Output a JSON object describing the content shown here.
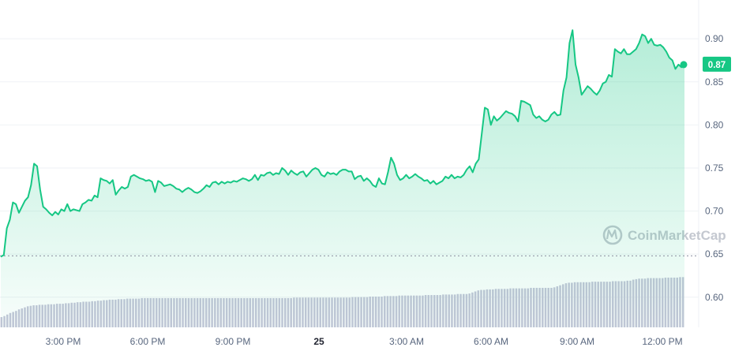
{
  "chart_data": {
    "type": "area",
    "ylim": [
      0.565,
      0.945
    ],
    "y_ticks": [
      0.6,
      0.65,
      0.7,
      0.75,
      0.8,
      0.85,
      0.9
    ],
    "y_tick_labels": [
      "0.60",
      "0.65",
      "0.70",
      "0.75",
      "0.80",
      "0.85",
      "0.90"
    ],
    "x_range": [
      "12:45 PM",
      "1:05 PM"
    ],
    "x_ticks": [
      {
        "label": "3:00 PM",
        "bold": false
      },
      {
        "label": "6:00 PM",
        "bold": false
      },
      {
        "label": "9:00 PM",
        "bold": false
      },
      {
        "label": "25",
        "bold": true
      },
      {
        "label": "3:00 AM",
        "bold": false
      },
      {
        "label": "6:00 AM",
        "bold": false
      },
      {
        "label": "9:00 AM",
        "bold": false
      },
      {
        "label": "12:00 PM",
        "bold": false
      }
    ],
    "baseline": 0.648,
    "last_value": 0.87,
    "last_value_label": "0.87",
    "series": [
      {
        "values": [
          0.647,
          0.649,
          0.68,
          0.69,
          0.71,
          0.708,
          0.698,
          0.705,
          0.712,
          0.716,
          0.73,
          0.755,
          0.752,
          0.725,
          0.705,
          0.702,
          0.698,
          0.695,
          0.699,
          0.696,
          0.702,
          0.7,
          0.708,
          0.7,
          0.702,
          0.701,
          0.7,
          0.708,
          0.71,
          0.713,
          0.712,
          0.718,
          0.716,
          0.738,
          0.736,
          0.735,
          0.732,
          0.736,
          0.719,
          0.724,
          0.728,
          0.726,
          0.728,
          0.74,
          0.742,
          0.74,
          0.738,
          0.737,
          0.735,
          0.736,
          0.734,
          0.722,
          0.735,
          0.733,
          0.729,
          0.73,
          0.731,
          0.729,
          0.726,
          0.725,
          0.722,
          0.725,
          0.727,
          0.725,
          0.722,
          0.721,
          0.723,
          0.726,
          0.73,
          0.728,
          0.733,
          0.734,
          0.731,
          0.734,
          0.732,
          0.734,
          0.733,
          0.735,
          0.734,
          0.736,
          0.738,
          0.737,
          0.735,
          0.737,
          0.742,
          0.736,
          0.742,
          0.741,
          0.744,
          0.745,
          0.742,
          0.744,
          0.743,
          0.75,
          0.747,
          0.742,
          0.747,
          0.744,
          0.742,
          0.745,
          0.746,
          0.74,
          0.744,
          0.748,
          0.75,
          0.748,
          0.742,
          0.74,
          0.745,
          0.743,
          0.744,
          0.742,
          0.746,
          0.748,
          0.748,
          0.746,
          0.746,
          0.737,
          0.74,
          0.741,
          0.735,
          0.738,
          0.735,
          0.73,
          0.728,
          0.738,
          0.732,
          0.731,
          0.745,
          0.762,
          0.755,
          0.742,
          0.736,
          0.738,
          0.742,
          0.738,
          0.74,
          0.743,
          0.74,
          0.738,
          0.735,
          0.736,
          0.732,
          0.735,
          0.731,
          0.733,
          0.735,
          0.74,
          0.738,
          0.742,
          0.738,
          0.74,
          0.739,
          0.742,
          0.748,
          0.752,
          0.745,
          0.755,
          0.76,
          0.79,
          0.82,
          0.818,
          0.8,
          0.81,
          0.805,
          0.808,
          0.812,
          0.816,
          0.814,
          0.813,
          0.81,
          0.804,
          0.828,
          0.827,
          0.825,
          0.823,
          0.812,
          0.808,
          0.81,
          0.806,
          0.804,
          0.806,
          0.812,
          0.815,
          0.811,
          0.812,
          0.84,
          0.855,
          0.895,
          0.91,
          0.87,
          0.855,
          0.835,
          0.84,
          0.845,
          0.842,
          0.838,
          0.835,
          0.84,
          0.848,
          0.85,
          0.858,
          0.856,
          0.888,
          0.885,
          0.883,
          0.888,
          0.882,
          0.882,
          0.885,
          0.888,
          0.895,
          0.905,
          0.903,
          0.895,
          0.9,
          0.893,
          0.892,
          0.893,
          0.89,
          0.885,
          0.878,
          0.875,
          0.865,
          0.87,
          0.867,
          0.87
        ]
      }
    ],
    "volume": {
      "values": [
        0.2,
        0.22,
        0.25,
        0.28,
        0.3,
        0.32,
        0.35,
        0.37,
        0.39,
        0.41,
        0.42,
        0.43,
        0.43,
        0.44,
        0.44,
        0.44,
        0.45,
        0.45,
        0.45,
        0.46,
        0.46,
        0.46,
        0.47,
        0.47,
        0.48,
        0.48,
        0.49,
        0.49,
        0.5,
        0.5,
        0.5,
        0.51,
        0.51,
        0.52,
        0.52,
        0.53,
        0.53,
        0.54,
        0.54,
        0.54,
        0.55,
        0.55,
        0.55,
        0.56,
        0.56,
        0.56,
        0.56,
        0.56,
        0.57,
        0.57,
        0.57,
        0.57,
        0.57,
        0.57,
        0.57,
        0.57,
        0.57,
        0.57,
        0.57,
        0.57,
        0.57,
        0.57,
        0.57,
        0.57,
        0.57,
        0.57,
        0.57,
        0.57,
        0.57,
        0.57,
        0.57,
        0.57,
        0.57,
        0.57,
        0.57,
        0.57,
        0.57,
        0.57,
        0.57,
        0.57,
        0.57,
        0.57,
        0.57,
        0.57,
        0.57,
        0.57,
        0.57,
        0.57,
        0.57,
        0.57,
        0.57,
        0.57,
        0.57,
        0.57,
        0.57,
        0.57,
        0.57,
        0.57,
        0.57,
        0.57,
        0.58,
        0.58,
        0.58,
        0.58,
        0.58,
        0.58,
        0.58,
        0.58,
        0.58,
        0.58,
        0.58,
        0.58,
        0.58,
        0.58,
        0.58,
        0.58,
        0.58,
        0.58,
        0.58,
        0.58,
        0.59,
        0.59,
        0.59,
        0.59,
        0.59,
        0.59,
        0.6,
        0.6,
        0.6,
        0.6,
        0.6,
        0.61,
        0.61,
        0.61,
        0.61,
        0.61,
        0.62,
        0.62,
        0.62,
        0.62,
        0.62,
        0.62,
        0.62,
        0.62,
        0.62,
        0.63,
        0.63,
        0.63,
        0.63,
        0.63,
        0.63,
        0.64,
        0.64,
        0.64,
        0.64,
        0.64,
        0.65,
        0.65,
        0.65,
        0.65,
        0.66,
        0.68,
        0.7,
        0.72,
        0.73,
        0.73,
        0.74,
        0.74,
        0.74,
        0.75,
        0.75,
        0.75,
        0.75,
        0.75,
        0.76,
        0.76,
        0.76,
        0.76,
        0.76,
        0.76,
        0.76,
        0.77,
        0.77,
        0.77,
        0.77,
        0.77,
        0.77,
        0.77,
        0.77,
        0.78,
        0.8,
        0.82,
        0.84,
        0.86,
        0.87,
        0.87,
        0.88,
        0.88,
        0.88,
        0.88,
        0.88,
        0.88,
        0.89,
        0.89,
        0.89,
        0.89,
        0.89,
        0.89,
        0.89,
        0.9,
        0.9,
        0.9,
        0.9,
        0.9,
        0.91,
        0.91,
        0.93,
        0.94,
        0.95,
        0.95,
        0.95,
        0.96,
        0.96,
        0.96,
        0.96,
        0.96,
        0.96,
        0.97,
        0.97,
        0.97,
        0.97,
        0.97,
        0.98,
        0.98
      ]
    },
    "grid": true,
    "colors": {
      "line": "#16c784",
      "area_top": "#16c784",
      "volume": "#c4c6d8",
      "baseline": "#8a8fa0",
      "grid": "#eff2f5",
      "label_bg": "#16c784"
    }
  },
  "watermark": {
    "text": "CoinMarketCap",
    "icon": "coinmarketcap-logo-icon"
  }
}
